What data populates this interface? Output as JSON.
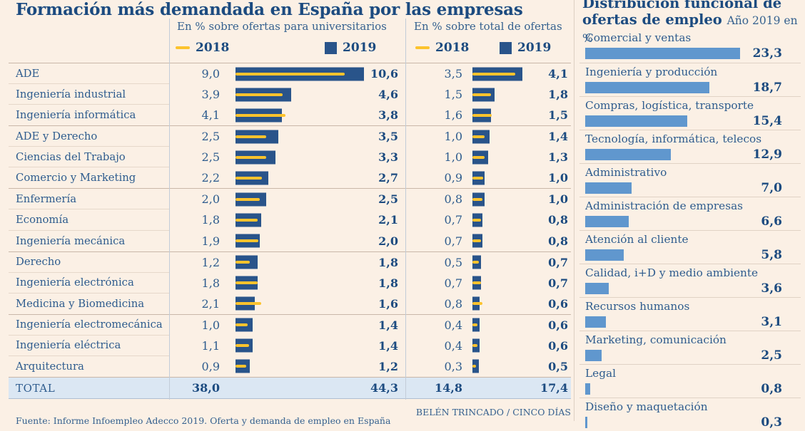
{
  "page": {
    "credit": "BELÉN TRINCADO / CINCO DÍAS",
    "source": "Fuente: Informe Infoempleo Adecco 2019. Oferta y demanda de empleo en España"
  },
  "colors": {
    "background": "#fbf0e5",
    "bar_navy_2019": "#29548a",
    "line_yellow_2018": "#fcc32d",
    "bar_light_blue": "#6097ce",
    "headline_blue": "#1c4b80",
    "body_blue": "#2e5c8e",
    "total_row_bg": "#dbe7f3"
  },
  "chart_data": [
    {
      "type": "bar",
      "orientation": "horizontal",
      "title": "Formación más demandada en España por las empresas",
      "panels": [
        "En % sobre ofertas para universitarios",
        "En % sobre total de ofertas"
      ],
      "legend": [
        "2018",
        "2019"
      ],
      "legend_style": {
        "2018": "yellow line",
        "2019": "navy bar"
      },
      "categories": [
        "ADE",
        "Ingeniería industrial",
        "Ingeniería informática",
        "ADE y Derecho",
        "Ciencias del Trabajo",
        "Comercio y Marketing",
        "Enfermería",
        "Economía",
        "Ingeniería mecánica",
        "Derecho",
        "Ingeniería electrónica",
        "Medicina y Biomedicina",
        "Ingeniería electromecánica",
        "Ingeniería eléctrica",
        "Arquitectura"
      ],
      "series": [
        {
          "name": "2018 - En % sobre ofertas para universitarios",
          "values": [
            9.0,
            3.9,
            4.1,
            2.5,
            2.5,
            2.2,
            2.0,
            1.8,
            1.9,
            1.2,
            1.8,
            2.1,
            1.0,
            1.1,
            0.9
          ]
        },
        {
          "name": "2019 - En % sobre ofertas para universitarios",
          "values": [
            10.6,
            4.6,
            3.8,
            3.5,
            3.3,
            2.7,
            2.5,
            2.1,
            2.0,
            1.8,
            1.8,
            1.6,
            1.4,
            1.4,
            1.2
          ]
        },
        {
          "name": "2018 - En % sobre total de ofertas",
          "values": [
            3.5,
            1.5,
            1.6,
            1.0,
            1.0,
            0.9,
            0.8,
            0.7,
            0.7,
            0.5,
            0.7,
            0.8,
            0.4,
            0.4,
            0.3
          ]
        },
        {
          "name": "2019 - En % sobre total de ofertas",
          "values": [
            4.1,
            1.8,
            1.5,
            1.4,
            1.3,
            1.0,
            1.0,
            0.8,
            0.8,
            0.7,
            0.7,
            0.6,
            0.6,
            0.6,
            0.5
          ]
        }
      ],
      "total": {
        "label": "TOTAL",
        "values": [
          38.0,
          44.3,
          14.8,
          17.4
        ]
      }
    },
    {
      "type": "bar",
      "orientation": "horizontal",
      "title": "Distribución funcional de ofertas de empleo",
      "subtitle": "Año 2019 en %",
      "categories": [
        "Comercial y ventas",
        "Ingeniería y producción",
        "Compras, logística, transporte",
        "Tecnología, informática, telecos",
        "Administrativo",
        "Administración de empresas",
        "Atención al cliente",
        "Calidad, i+D y medio ambiente",
        "Recursos humanos",
        "Marketing, comunicación",
        "Legal",
        "Diseño y maquetación"
      ],
      "values": [
        23.3,
        18.7,
        15.4,
        12.9,
        7.0,
        6.6,
        5.8,
        3.6,
        3.1,
        2.5,
        0.8,
        0.3
      ]
    }
  ]
}
